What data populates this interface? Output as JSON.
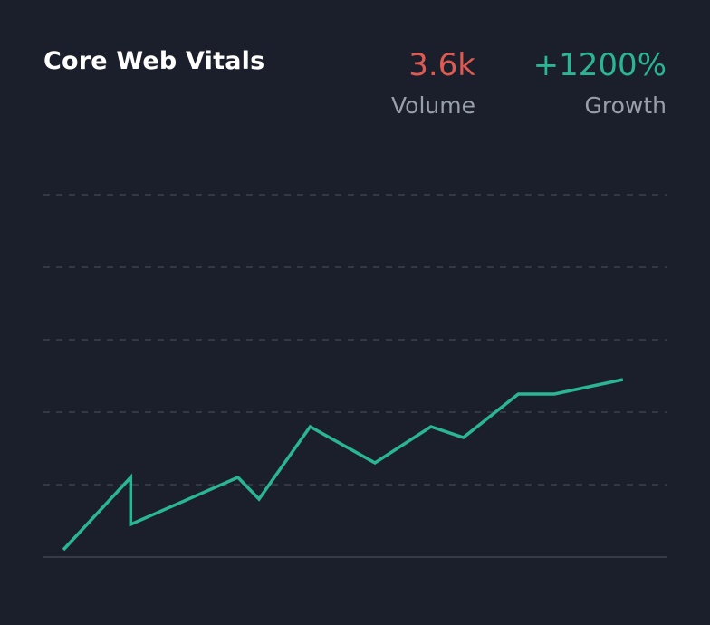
{
  "header": {
    "title": "Core Web Vitals"
  },
  "metrics": [
    {
      "value": "3.6k",
      "label": "Volume",
      "color": "#e05a52"
    },
    {
      "value": "+1200%",
      "label": "Growth",
      "color": "#2ab594"
    }
  ],
  "chart_data": {
    "type": "line",
    "title": "Core Web Vitals",
    "xlabel": "",
    "ylabel": "",
    "ylim": [
      0,
      100
    ],
    "grid": true,
    "line_color": "#2ab594",
    "series": [
      {
        "x": [
          1.6,
          7.0,
          7.0,
          15.6,
          17.3,
          21.4,
          26.6,
          31.1,
          33.7,
          38.1,
          41.0,
          46.5
        ],
        "values": [
          2,
          22,
          9,
          22,
          16,
          36,
          26,
          36,
          33,
          45,
          45,
          49
        ]
      }
    ]
  }
}
